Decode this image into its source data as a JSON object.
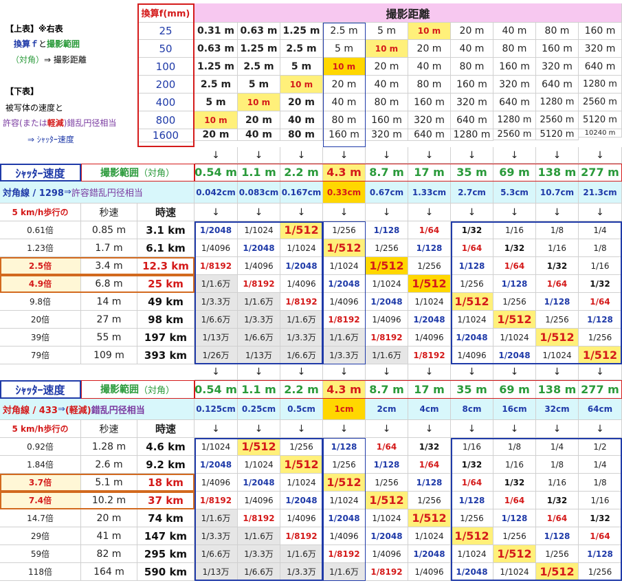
{
  "colors": {
    "red": "#d41a1a",
    "blue": "#1f3aa8",
    "green": "#2a9a3a",
    "purple": "#7a3aa0",
    "pink": "#f7c8f0",
    "yellow": "#fff07a",
    "gold": "#ffd700",
    "cyan": "#d8f7fb",
    "gray": "#e6e6e6",
    "orange": "#d2691e"
  },
  "note": {
    "upper": "【上表】※右表",
    "line1a": "換算ｆ",
    "line1b": "と",
    "line1c": "撮影範囲",
    "line2a": "（対角）",
    "line2b": "⇒ 撮影距離",
    "lower": "【下表】",
    "line3": "被写体の速度と",
    "line4a": "許容",
    "line4b": "(または",
    "line4c": "軽減",
    "line4d": ")錯乱円径相当",
    "line5": "⇒ ｼｬｯﾀｰ速度"
  },
  "top": {
    "f_header": "換算f(mm)",
    "dist_header": "撮影距離",
    "focal": [
      "25",
      "50",
      "100",
      "200",
      "400",
      "800",
      "1600"
    ],
    "dist": [
      [
        "0.31 m",
        "0.63 m",
        "1.25 m",
        "2.5 m",
        "5 m",
        "10 m",
        "20 m",
        "40 m",
        "80 m",
        "160 m"
      ],
      [
        "0.63 m",
        "1.25 m",
        "2.5 m",
        "5 m",
        "10 m",
        "20 m",
        "40 m",
        "80 m",
        "160 m",
        "320 m"
      ],
      [
        "1.25 m",
        "2.5 m",
        "5 m",
        "10 m",
        "20 m",
        "40 m",
        "80 m",
        "160 m",
        "320 m",
        "640 m"
      ],
      [
        "2.5 m",
        "5 m",
        "10 m",
        "20 m",
        "40 m",
        "80 m",
        "160 m",
        "320 m",
        "640 m",
        "1280 m"
      ],
      [
        "5 m",
        "10 m",
        "20 m",
        "40 m",
        "80 m",
        "160 m",
        "320 m",
        "640 m",
        "1280 m",
        "2560 m"
      ],
      [
        "10 m",
        "20 m",
        "40 m",
        "80 m",
        "160 m",
        "320 m",
        "640 m",
        "1280 m",
        "2560 m",
        "5120 m"
      ],
      [
        "20 m",
        "40 m",
        "80 m",
        "160 m",
        "320 m",
        "640 m",
        "1280 m",
        "2560 m",
        "5120 m",
        "10240 m"
      ]
    ]
  },
  "arrow": "↓",
  "sections": [
    {
      "shutter_label": "ｼｬｯﾀｰ速度",
      "range_label": "撮影範囲",
      "range_sub": "（対角）",
      "ranges": [
        "0.54 m",
        "1.1 m",
        "2.2 m",
        "4.3 m",
        "8.7 m",
        "17 m",
        "35 m",
        "69 m",
        "138 m",
        "277 m"
      ],
      "diag_a": "対角線 / 1298",
      "diag_b": "⇒",
      "diag_c": "許容",
      "diag_d": "錯乱円径相当",
      "diag_paren": "",
      "coc": [
        "0.042cm",
        "0.083cm",
        "0.167cm",
        "0.33cm",
        "0.67cm",
        "1.33cm",
        "2.7cm",
        "5.3cm",
        "10.7cm",
        "21.3cm"
      ],
      "walk_label": "5 km/h歩行の",
      "sec_label": "秒速",
      "hour_label": "時速",
      "rows": [
        {
          "mult": "0.61倍",
          "sec": "0.85 m",
          "hour": "3.1 km",
          "cells": [
            "1/2048",
            "1/1024",
            "1/512",
            "1/256",
            "1/128",
            "1/64",
            "1/32",
            "1/16",
            "1/8",
            "1/4"
          ]
        },
        {
          "mult": "1.23倍",
          "sec": "1.7 m",
          "hour": "6.1 km",
          "cells": [
            "1/4096",
            "1/2048",
            "1/1024",
            "1/512",
            "1/256",
            "1/128",
            "1/64",
            "1/32",
            "1/16",
            "1/8"
          ]
        },
        {
          "mult": "2.5倍",
          "sec": "3.4 m",
          "hour": "12.3 km",
          "cells": [
            "1/8192",
            "1/4096",
            "1/2048",
            "1/1024",
            "1/512",
            "1/256",
            "1/128",
            "1/64",
            "1/32",
            "1/16"
          ]
        },
        {
          "mult": "4.9倍",
          "sec": "6.8 m",
          "hour": "25 km",
          "cells": [
            "1/1.6万",
            "1/8192",
            "1/4096",
            "1/2048",
            "1/1024",
            "1/512",
            "1/256",
            "1/128",
            "1/64",
            "1/32"
          ]
        },
        {
          "mult": "9.8倍",
          "sec": "14 m",
          "hour": "49 km",
          "cells": [
            "1/3.3万",
            "1/1.6万",
            "1/8192",
            "1/4096",
            "1/2048",
            "1/1024",
            "1/512",
            "1/256",
            "1/128",
            "1/64"
          ]
        },
        {
          "mult": "20倍",
          "sec": "27 m",
          "hour": "98 km",
          "cells": [
            "1/6.6万",
            "1/3.3万",
            "1/1.6万",
            "1/8192",
            "1/4096",
            "1/2048",
            "1/1024",
            "1/512",
            "1/256",
            "1/128"
          ]
        },
        {
          "mult": "39倍",
          "sec": "55 m",
          "hour": "197 km",
          "cells": [
            "1/13万",
            "1/6.6万",
            "1/3.3万",
            "1/1.6万",
            "1/8192",
            "1/4096",
            "1/2048",
            "1/1024",
            "1/512",
            "1/256"
          ]
        },
        {
          "mult": "79倍",
          "sec": "109 m",
          "hour": "393 km",
          "cells": [
            "1/26万",
            "1/13万",
            "1/6.6万",
            "1/3.3万",
            "1/1.6万",
            "1/8192",
            "1/4096",
            "1/2048",
            "1/1024",
            "1/512"
          ]
        }
      ]
    },
    {
      "shutter_label": "ｼｬｯﾀｰ速度",
      "range_label": "撮影範囲",
      "range_sub": "（対角）",
      "ranges": [
        "0.54 m",
        "1.1 m",
        "2.2 m",
        "4.3 m",
        "8.7 m",
        "17 m",
        "35 m",
        "69 m",
        "138 m",
        "277 m"
      ],
      "diag_a": "対角線 / 433",
      "diag_b": "⇒",
      "diag_c": "(軽減)",
      "diag_d": "錯乱円径相当",
      "diag_paren": "",
      "coc": [
        "0.125cm",
        "0.25cm",
        "0.5cm",
        "1cm",
        "2cm",
        "4cm",
        "8cm",
        "16cm",
        "32cm",
        "64cm"
      ],
      "walk_label": "5 km/h歩行の",
      "sec_label": "秒速",
      "hour_label": "時速",
      "rows": [
        {
          "mult": "0.92倍",
          "sec": "1.28 m",
          "hour": "4.6 km",
          "cells": [
            "1/1024",
            "1/512",
            "1/256",
            "1/128",
            "1/64",
            "1/32",
            "1/16",
            "1/8",
            "1/4",
            "1/2"
          ]
        },
        {
          "mult": "1.84倍",
          "sec": "2.6 m",
          "hour": "9.2 km",
          "cells": [
            "1/2048",
            "1/1024",
            "1/512",
            "1/256",
            "1/128",
            "1/64",
            "1/32",
            "1/16",
            "1/8",
            "1/4"
          ]
        },
        {
          "mult": "3.7倍",
          "sec": "5.1 m",
          "hour": "18 km",
          "cells": [
            "1/4096",
            "1/2048",
            "1/1024",
            "1/512",
            "1/256",
            "1/128",
            "1/64",
            "1/32",
            "1/16",
            "1/8"
          ]
        },
        {
          "mult": "7.4倍",
          "sec": "10.2 m",
          "hour": "37 km",
          "cells": [
            "1/8192",
            "1/4096",
            "1/2048",
            "1/1024",
            "1/512",
            "1/256",
            "1/128",
            "1/64",
            "1/32",
            "1/16"
          ]
        },
        {
          "mult": "14.7倍",
          "sec": "20 m",
          "hour": "74 km",
          "cells": [
            "1/1.6万",
            "1/8192",
            "1/4096",
            "1/2048",
            "1/1024",
            "1/512",
            "1/256",
            "1/128",
            "1/64",
            "1/32"
          ]
        },
        {
          "mult": "29倍",
          "sec": "41 m",
          "hour": "147 km",
          "cells": [
            "1/3.3万",
            "1/1.6万",
            "1/8192",
            "1/4096",
            "1/2048",
            "1/1024",
            "1/512",
            "1/256",
            "1/128",
            "1/64"
          ]
        },
        {
          "mult": "59倍",
          "sec": "82 m",
          "hour": "295 km",
          "cells": [
            "1/6.6万",
            "1/3.3万",
            "1/1.6万",
            "1/8192",
            "1/4096",
            "1/2048",
            "1/1024",
            "1/512",
            "1/256",
            "1/128"
          ]
        },
        {
          "mult": "118倍",
          "sec": "164 m",
          "hour": "590 km",
          "cells": [
            "1/13万",
            "1/6.6万",
            "1/3.3万",
            "1/1.6万",
            "1/8192",
            "1/4096",
            "1/2048",
            "1/1024",
            "1/512",
            "1/256"
          ]
        }
      ]
    }
  ]
}
